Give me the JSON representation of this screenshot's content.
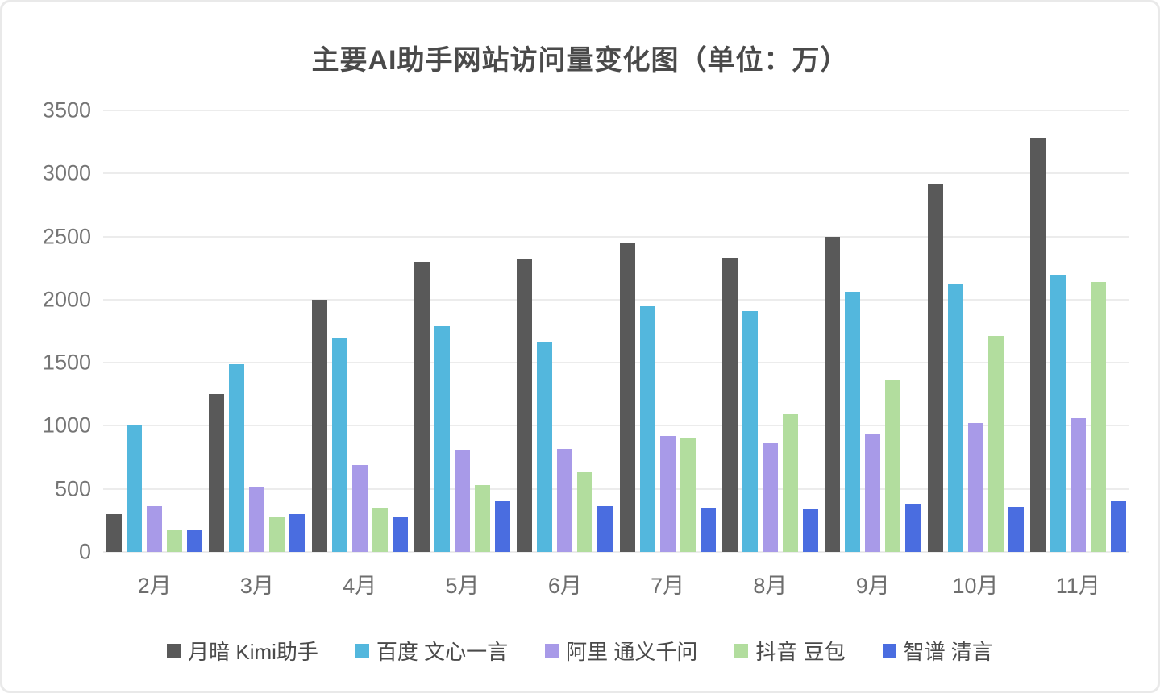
{
  "chart_data": {
    "type": "bar",
    "title": "主要AI助手网站访问量变化图（单位：万）",
    "xlabel": "",
    "ylabel": "",
    "ylim": [
      0,
      3500
    ],
    "y_ticks": [
      0,
      500,
      1000,
      1500,
      2000,
      2500,
      3000,
      3500
    ],
    "grid": true,
    "legend_position": "bottom",
    "categories": [
      "2月",
      "3月",
      "4月",
      "5月",
      "6月",
      "7月",
      "8月",
      "9月",
      "10月",
      "11月"
    ],
    "series": [
      {
        "name": "月暗 Kimi助手",
        "color": "#595959",
        "values": [
          300,
          1255,
          2000,
          2300,
          2320,
          2450,
          2330,
          2500,
          2920,
          3280
        ]
      },
      {
        "name": "百度 文心一言",
        "color": "#53b7dd",
        "values": [
          1005,
          1490,
          1690,
          1790,
          1670,
          1950,
          1910,
          2060,
          2120,
          2200
        ]
      },
      {
        "name": "阿里 通义千问",
        "color": "#a89ae8",
        "values": [
          365,
          520,
          690,
          810,
          820,
          920,
          860,
          940,
          1020,
          1060
        ]
      },
      {
        "name": "抖音 豆包",
        "color": "#b2dd9e",
        "values": [
          175,
          275,
          345,
          530,
          630,
          900,
          1095,
          1365,
          1710,
          2140
        ]
      },
      {
        "name": "智谱 清言",
        "color": "#4a6de0",
        "values": [
          170,
          300,
          280,
          405,
          365,
          350,
          340,
          380,
          360,
          400
        ]
      }
    ]
  }
}
